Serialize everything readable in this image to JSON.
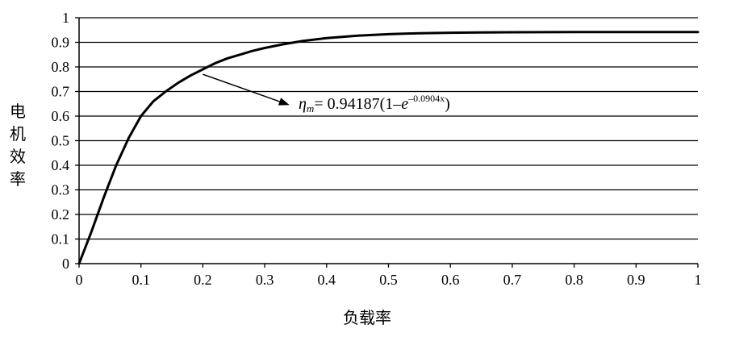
{
  "chart_data": {
    "type": "line",
    "title": "",
    "xlabel_chars": [
      "负",
      "载",
      "率"
    ],
    "ylabel_chars": [
      "电",
      "机",
      "效",
      "率"
    ],
    "xlim": [
      0,
      1
    ],
    "ylim": [
      0,
      1
    ],
    "x_ticks": [
      "0",
      "0.1",
      "0.2",
      "0.3",
      "0.4",
      "0.5",
      "0.6",
      "0.7",
      "0.8",
      "0.9",
      "1"
    ],
    "y_ticks": [
      "0",
      "0.1",
      "0.2",
      "0.3",
      "0.4",
      "0.5",
      "0.6",
      "0.7",
      "0.8",
      "0.9",
      "1"
    ],
    "grid": "horizontal",
    "series": [
      {
        "x": [
          0,
          0.02,
          0.04,
          0.06,
          0.08,
          0.1,
          0.12,
          0.14,
          0.16,
          0.18,
          0.2,
          0.22,
          0.24,
          0.26,
          0.28,
          0.3,
          0.33,
          0.36,
          0.4,
          0.45,
          0.5,
          0.55,
          0.6,
          0.65,
          0.7,
          0.8,
          0.9,
          1
        ],
        "y": [
          0,
          0.13,
          0.27,
          0.4,
          0.51,
          0.6,
          0.66,
          0.7,
          0.735,
          0.765,
          0.79,
          0.815,
          0.835,
          0.85,
          0.865,
          0.877,
          0.892,
          0.905,
          0.917,
          0.927,
          0.933,
          0.937,
          0.939,
          0.94,
          0.941,
          0.9415,
          0.9418,
          0.9419
        ],
        "color": "#000000"
      }
    ],
    "annotation": {
      "eta": "η",
      "sub": "m",
      "prefix": "= 0.94187(1–",
      "base": "e",
      "exponent": "–0.0904x",
      "suffix": ")",
      "arrow_from": [
        0.2,
        0.77
      ],
      "arrow_to": [
        0.34,
        0.645
      ]
    }
  }
}
